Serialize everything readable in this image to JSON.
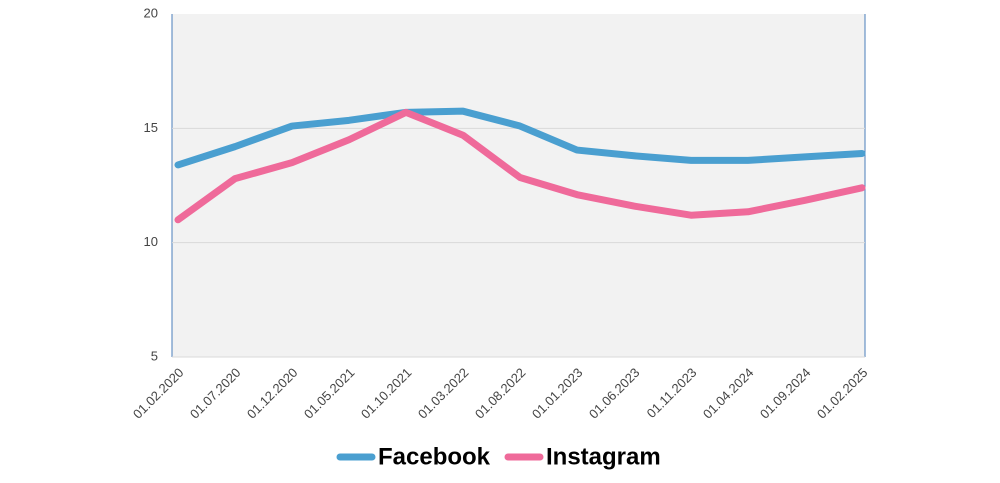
{
  "chart_data": {
    "type": "line",
    "categories": [
      "01.02.2020",
      "01.07.2020",
      "01.12.2020",
      "01.05.2021",
      "01.10.2021",
      "01.03.2022",
      "01.08.2022",
      "01.01.2023",
      "01.06.2023",
      "01.11.2023",
      "01.04.2024",
      "01.09.2024",
      "01.02.2025"
    ],
    "series": [
      {
        "name": "Facebook",
        "color": "#4a9fd0",
        "values": [
          13.4,
          14.2,
          15.1,
          15.35,
          15.7,
          15.75,
          15.1,
          14.05,
          13.8,
          13.6,
          13.6,
          13.75,
          13.9
        ]
      },
      {
        "name": "Instagram",
        "color": "#ef6a9a",
        "values": [
          11.0,
          12.8,
          13.5,
          14.5,
          15.7,
          14.7,
          12.85,
          12.1,
          11.6,
          11.2,
          11.35,
          11.85,
          12.4
        ]
      }
    ],
    "ylim": [
      5,
      20
    ],
    "yticks": [
      5,
      10,
      15,
      20
    ],
    "grid": true,
    "legend": "bottom"
  }
}
